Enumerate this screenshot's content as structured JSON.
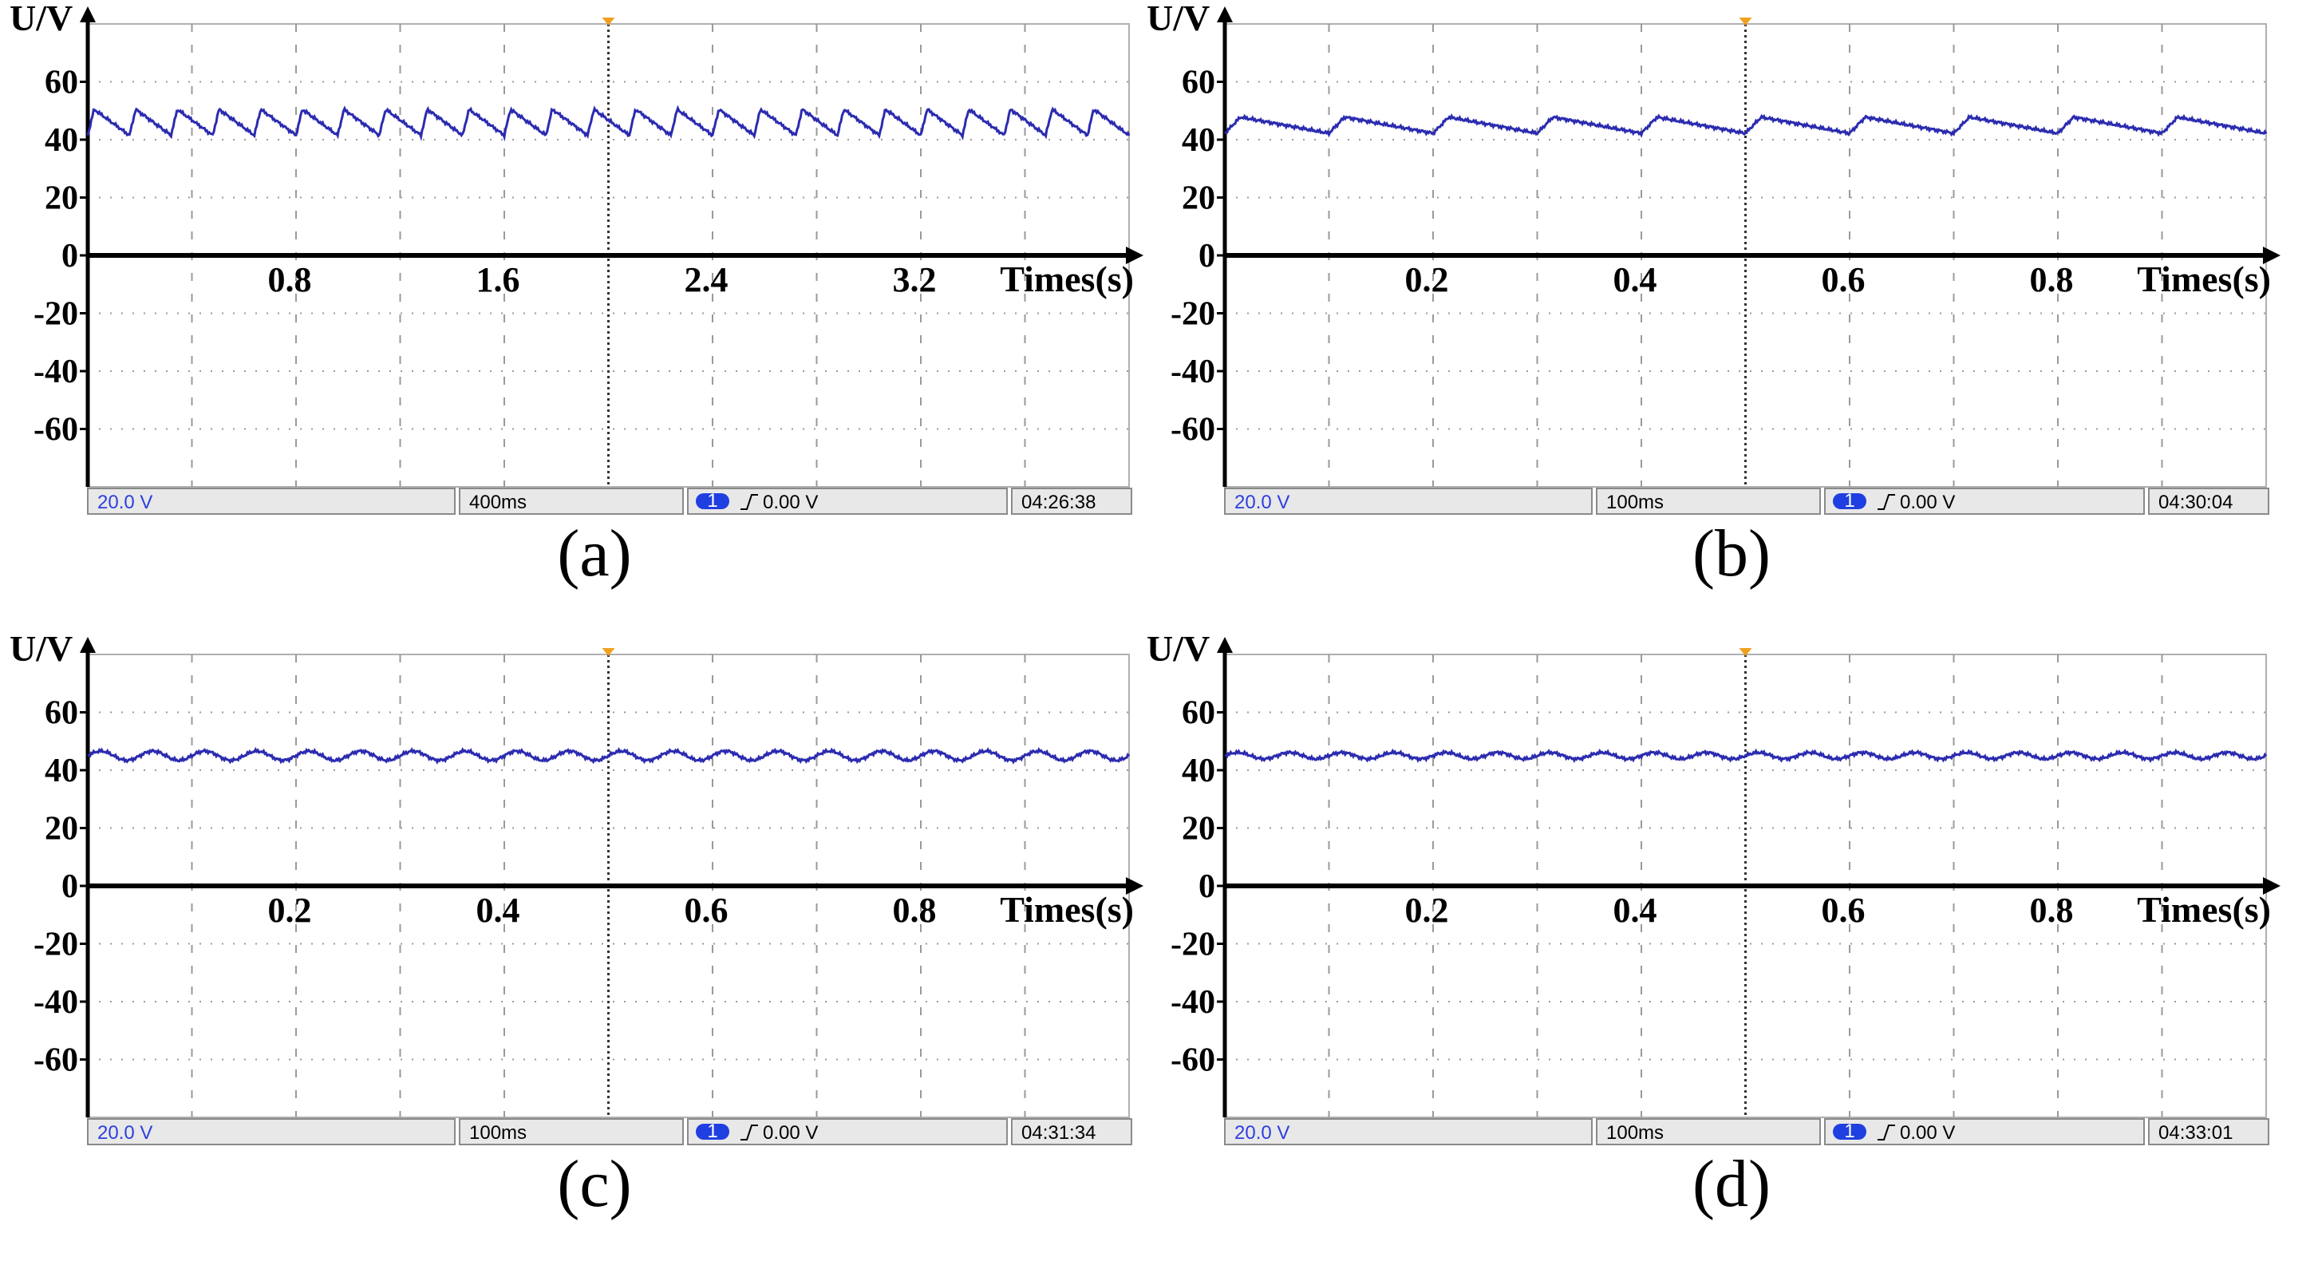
{
  "colors": {
    "trace": "#2b2bb0",
    "grid": "#9a9a9a",
    "axis": "#000000",
    "trigger_marker": "#f0a020",
    "status_bg": "#e8e8e8",
    "status_border": "#8a8a8a",
    "scale_text": "#2d3fe0",
    "channel_badge": "#1f3fe0"
  },
  "chart_data": [
    {
      "type": "line",
      "caption": "(a)",
      "ylabel": "U/V",
      "xlabel": "Times(s)",
      "ylim": [
        -80,
        80
      ],
      "yticks": [
        60,
        40,
        20,
        0,
        -20,
        -40,
        -60
      ],
      "xlim": [
        0,
        4.0
      ],
      "xticks": [
        0.8,
        1.6,
        2.4,
        3.2
      ],
      "xtick_labels": [
        "0.8",
        "1.6",
        "2.4",
        "3.2"
      ],
      "grid": true,
      "trigger_time": 2.0,
      "series": [
        {
          "baseline": 46,
          "ripple_amplitude": 4.5,
          "ripple_period": 0.16,
          "waveform": "sawtooth-dip"
        }
      ],
      "status_bar": {
        "volts_per_div": "20.0 V",
        "time_per_div": "400ms",
        "channel": "1",
        "trigger_level": "0.00 V",
        "timestamp": "04:26:38"
      }
    },
    {
      "type": "line",
      "caption": "(b)",
      "ylabel": "U/V",
      "xlabel": "Times(s)",
      "ylim": [
        -80,
        80
      ],
      "yticks": [
        60,
        40,
        20,
        0,
        -20,
        -40,
        -60
      ],
      "xlim": [
        0,
        1.0
      ],
      "xticks": [
        0.2,
        0.4,
        0.6,
        0.8
      ],
      "xtick_labels": [
        "0.2",
        "0.4",
        "0.6",
        "0.8"
      ],
      "grid": true,
      "trigger_time": 0.5,
      "series": [
        {
          "baseline": 45,
          "ripple_amplitude": 2.8,
          "ripple_period": 0.1,
          "waveform": "sawtooth-dip"
        }
      ],
      "status_bar": {
        "volts_per_div": "20.0 V",
        "time_per_div": "100ms",
        "channel": "1",
        "trigger_level": "0.00 V",
        "timestamp": "04:30:04"
      }
    },
    {
      "type": "line",
      "caption": "(c)",
      "ylabel": "U/V",
      "xlabel": "Times(s)",
      "ylim": [
        -80,
        80
      ],
      "yticks": [
        60,
        40,
        20,
        0,
        -20,
        -40,
        -60
      ],
      "xlim": [
        0,
        1.0
      ],
      "xticks": [
        0.2,
        0.4,
        0.6,
        0.8
      ],
      "xtick_labels": [
        "0.2",
        "0.4",
        "0.6",
        "0.8"
      ],
      "grid": true,
      "trigger_time": 0.5,
      "series": [
        {
          "baseline": 45,
          "ripple_amplitude": 1.6,
          "ripple_period": 0.05,
          "waveform": "sine-dip"
        }
      ],
      "status_bar": {
        "volts_per_div": "20.0 V",
        "time_per_div": "100ms",
        "channel": "1",
        "trigger_level": "0.00 V",
        "timestamp": "04:31:34"
      }
    },
    {
      "type": "line",
      "caption": "(d)",
      "ylabel": "U/V",
      "xlabel": "Times(s)",
      "ylim": [
        -80,
        80
      ],
      "yticks": [
        60,
        40,
        20,
        0,
        -20,
        -40,
        -60
      ],
      "xlim": [
        0,
        1.0
      ],
      "xticks": [
        0.2,
        0.4,
        0.6,
        0.8
      ],
      "xtick_labels": [
        "0.2",
        "0.4",
        "0.6",
        "0.8"
      ],
      "grid": true,
      "trigger_time": 0.5,
      "series": [
        {
          "baseline": 45,
          "ripple_amplitude": 1.1,
          "ripple_period": 0.05,
          "waveform": "sine-dip"
        }
      ],
      "status_bar": {
        "volts_per_div": "20.0 V",
        "time_per_div": "100ms",
        "channel": "1",
        "trigger_level": "0.00 V",
        "timestamp": "04:33:01"
      }
    }
  ]
}
